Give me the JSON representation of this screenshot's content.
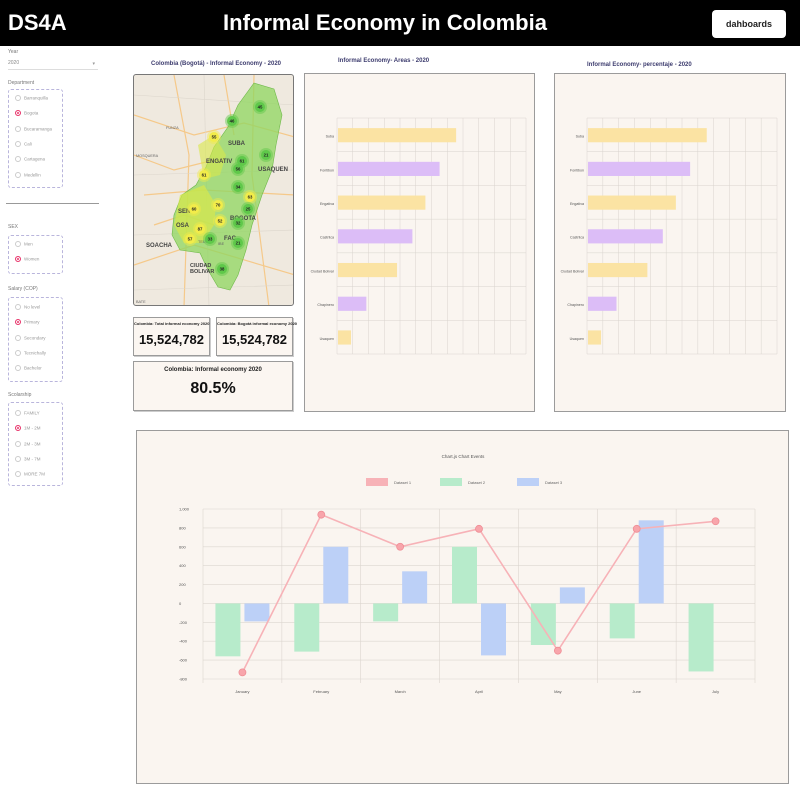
{
  "header": {
    "brand": "DS4A",
    "title": "Informal Economy in Colombia",
    "button_label": "dahboards"
  },
  "sidebar": {
    "year": {
      "label": "Year",
      "value": "2020"
    },
    "department": {
      "label": "Department",
      "options": [
        "Barranquilla",
        "Bogota",
        "Bucaramanga",
        "Cali",
        "Cartagena",
        "Medellin"
      ],
      "selected": "Bogota"
    },
    "sex": {
      "label": "SEX",
      "options": [
        "Men",
        "Women"
      ],
      "selected": "Women"
    },
    "salary": {
      "label": "Salary (COP)",
      "options": [
        "No level",
        "Primary",
        "Secondary",
        "Tecnichally",
        "Bachelor"
      ],
      "selected": "Primary"
    },
    "scolarship": {
      "label": "Scolarship",
      "options": [
        "FAMILY",
        "1M - 2M",
        "2M - 3M",
        "3M - 7M",
        "MORE 7M"
      ],
      "selected": "1M - 2M"
    }
  },
  "map": {
    "title": "Colombia (Bogotá) - Informal Economy - 2020",
    "place_labels": [
      "SUBA",
      "ENGATIV",
      "USAQUEN",
      "BOGOTA",
      "SOACHA",
      "CIUDAD BOLIVAR",
      "FUNZA",
      "MOSQUERA",
      "FAC",
      "TEUSA",
      "IBE",
      "OSA",
      "SEN",
      "BATE"
    ],
    "clusters": [
      {
        "n": "45",
        "color": "green"
      },
      {
        "n": "46",
        "color": "green"
      },
      {
        "n": "55",
        "color": "yellow"
      },
      {
        "n": "61",
        "color": "green"
      },
      {
        "n": "21",
        "color": "green"
      },
      {
        "n": "56",
        "color": "green"
      },
      {
        "n": "61",
        "color": "yellow"
      },
      {
        "n": "34",
        "color": "green"
      },
      {
        "n": "63",
        "color": "yellow"
      },
      {
        "n": "70",
        "color": "yellow"
      },
      {
        "n": "60",
        "color": "yellow"
      },
      {
        "n": "25",
        "color": "green"
      },
      {
        "n": "52",
        "color": "yellow"
      },
      {
        "n": "32",
        "color": "green"
      },
      {
        "n": "87",
        "color": "yellow"
      },
      {
        "n": "57",
        "color": "yellow"
      },
      {
        "n": "33",
        "color": "green"
      },
      {
        "n": "21",
        "color": "green"
      },
      {
        "n": "38",
        "color": "green"
      }
    ]
  },
  "stats": {
    "total_caption": "Colombia: Total informal economy 2020",
    "total_value": "15,524,782",
    "bogota_caption": "Colombia: Bogotá informal economy 2020",
    "bogota_value": "15,524,782",
    "pct_caption": "Colombia: Informal economy 2020",
    "pct_value": "80.5%"
  },
  "areas_chart": {
    "title": "Informal Economy- Areas  - 2020"
  },
  "pct_chart": {
    "title": "Informal Economy- percentaje  - 2020"
  },
  "events_chart": {
    "title": "Chart.js Chart Events"
  },
  "colors": {
    "yellow_bar": "#fbe3a3",
    "purple_bar": "#dcbdf7",
    "red": "#f7b2b7",
    "green": "#b7ebcb",
    "blue": "#bcd0f7",
    "map_green": "#8fd55f",
    "map_yellow": "#d9e84a"
  },
  "chart_data": [
    {
      "type": "bar",
      "orientation": "horizontal",
      "categories": [
        "Suba",
        "Fontibon",
        "Engativa",
        "Castrilca",
        "Ciudad Bolivar",
        "Chapinero",
        "Usaquen"
      ],
      "series": [
        {
          "values": [
            100,
            86,
            74,
            63,
            50,
            24,
            11
          ]
        }
      ],
      "bar_colors": [
        "#fbe3a3",
        "#dcbdf7",
        "#fbe3a3",
        "#dcbdf7",
        "#fbe3a3",
        "#dcbdf7",
        "#fbe3a3"
      ],
      "xlim": [
        0,
        160
      ],
      "grid": true
    },
    {
      "type": "bar",
      "orientation": "horizontal",
      "categories": [
        "Suba",
        "Fontibon",
        "Engativa",
        "Castrilca",
        "Ciudad Bolivar",
        "Chapinero",
        "Usaquen"
      ],
      "series": [
        {
          "values": [
            100,
            86,
            74,
            63,
            50,
            24,
            11
          ]
        }
      ],
      "bar_colors": [
        "#fbe3a3",
        "#dcbdf7",
        "#fbe3a3",
        "#dcbdf7",
        "#fbe3a3",
        "#dcbdf7",
        "#fbe3a3"
      ],
      "xlim": [
        0,
        160
      ],
      "grid": true
    },
    {
      "type": "bar",
      "title": "Chart.js Chart Events",
      "categories": [
        "January",
        "February",
        "March",
        "April",
        "May",
        "June",
        "July"
      ],
      "series": [
        {
          "name": "Dataset 1",
          "type": "line",
          "values": [
            -730,
            940,
            600,
            790,
            -500,
            790,
            870
          ]
        },
        {
          "name": "Dataset 2",
          "type": "bar",
          "values": [
            -560,
            -510,
            -190,
            600,
            -440,
            -370,
            -720
          ]
        },
        {
          "name": "Dataset 3",
          "type": "bar",
          "values": [
            -190,
            600,
            340,
            -550,
            170,
            880,
            0
          ]
        }
      ],
      "ylim": [
        -800,
        1000
      ],
      "yticks": [
        "1,000",
        "800",
        "600",
        "400",
        "200",
        "0",
        "-200",
        "-400",
        "-600",
        "-800"
      ],
      "legend": "top",
      "grid": true
    }
  ]
}
